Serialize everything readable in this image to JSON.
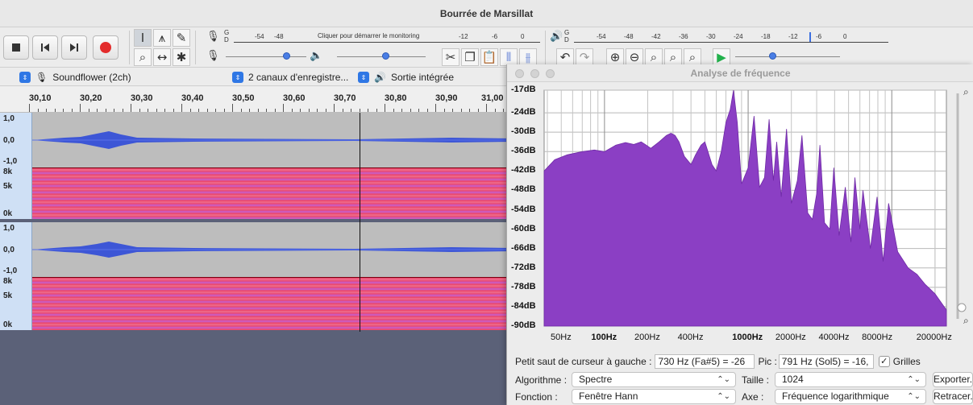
{
  "window": {
    "title": "Bourrée de Marsillat"
  },
  "toolbar": {
    "record_meter_labels": [
      "-54",
      "-48",
      "-12",
      "-6",
      "0"
    ],
    "record_meter_hint": "Cliquer pour démarrer le monitoring",
    "record_meter_channels": [
      "G",
      "D"
    ],
    "play_meter_labels": [
      "-54",
      "-48",
      "-42",
      "-36",
      "-30",
      "-24",
      "-18",
      "-12",
      "-6",
      "0"
    ],
    "play_meter_channels": [
      "G",
      "D"
    ],
    "record_volume": 0.78,
    "play_volume": 0.55,
    "playback_speed": 0.35
  },
  "devices": {
    "input": "Soundflower (2ch)",
    "channels": "2 canaux d'enregistre...",
    "output": "Sortie intégrée"
  },
  "ruler": {
    "labels": [
      "30,10",
      "30,20",
      "30,30",
      "30,40",
      "30,50",
      "30,60",
      "30,70",
      "30,80",
      "30,90",
      "31,00"
    ]
  },
  "tracks": {
    "wave_labels": [
      "1,0",
      "0,0",
      "-1,0"
    ],
    "spec_labels": [
      "8k",
      "5k",
      "0k"
    ]
  },
  "analysis": {
    "title": "Analyse de fréquence",
    "y_labels": [
      "-17dB",
      "-24dB",
      "-30dB",
      "-36dB",
      "-42dB",
      "-48dB",
      "-54dB",
      "-60dB",
      "-66dB",
      "-72dB",
      "-78dB",
      "-84dB",
      "-90dB"
    ],
    "x_labels": [
      {
        "text": "50Hz",
        "bold": false
      },
      {
        "text": "100Hz",
        "bold": true
      },
      {
        "text": "200Hz",
        "bold": false
      },
      {
        "text": "400Hz",
        "bold": false
      },
      {
        "text": "1000Hz",
        "bold": true
      },
      {
        "text": "2000Hz",
        "bold": false
      },
      {
        "text": "4000Hz",
        "bold": false
      },
      {
        "text": "8000Hz",
        "bold": false
      },
      {
        "text": "20000Hz",
        "bold": false
      }
    ],
    "cursor_label": "Petit saut de curseur à gauche :",
    "cursor_value": "730 Hz (Fa#5) = -26",
    "peak_label": "Pic :",
    "peak_value": "791 Hz (Sol5) = -16,",
    "grids_label": "Grilles",
    "grids_checked": true,
    "algorithm_label": "Algorithme :",
    "algorithm_value": "Spectre",
    "size_label": "Taille :",
    "size_value": "1024",
    "export_label": "Exporter...",
    "function_label": "Fonction :",
    "function_value": "Fenêtre Hann",
    "axis_label": "Axe :",
    "axis_value": "Fréquence logarithmique",
    "replot_label": "Retracer...",
    "fill_color": "#8b3fc4",
    "chart_data": {
      "type": "area",
      "title": "Analyse de fréquence",
      "xlabel": "",
      "ylabel": "",
      "x_scale": "log",
      "xlim": [
        38,
        24000
      ],
      "ylim": [
        -90,
        -17
      ],
      "grid": true,
      "series": [
        {
          "x": [
            38,
            45,
            55,
            70,
            85,
            100,
            120,
            140,
            160,
            180,
            195,
            210,
            240,
            270,
            290,
            310,
            330,
            360,
            400,
            430,
            470,
            500,
            560,
            600,
            650,
            700,
            750,
            791,
            840,
            900,
            1000,
            1100,
            1200,
            1300,
            1400,
            1500,
            1580,
            1700,
            1850,
            2000,
            2200,
            2370,
            2600,
            2800,
            3000,
            3160,
            3400,
            3700,
            3950,
            4300,
            4750,
            5200,
            5540,
            6000,
            6300,
            7100,
            7900,
            8700,
            9500,
            11000,
            13000,
            15000,
            17000,
            20000,
            24000
          ],
          "y": [
            -42,
            -38.5,
            -37,
            -36,
            -35.5,
            -36,
            -34,
            -33.2,
            -33.8,
            -33,
            -34,
            -35,
            -33,
            -31,
            -30.3,
            -31,
            -33,
            -37.5,
            -40,
            -37,
            -34,
            -33,
            -40,
            -42,
            -36,
            -27,
            -23,
            -17,
            -27,
            -46,
            -41,
            -25,
            -47,
            -44,
            -26,
            -45,
            -33,
            -50,
            -29,
            -52,
            -45,
            -31,
            -55,
            -57,
            -49,
            -34,
            -58,
            -60,
            -41,
            -62,
            -47,
            -64,
            -44,
            -60,
            -48,
            -66,
            -50,
            -70,
            -52,
            -67,
            -72,
            -74,
            -77,
            -80,
            -85
          ]
        }
      ]
    }
  }
}
